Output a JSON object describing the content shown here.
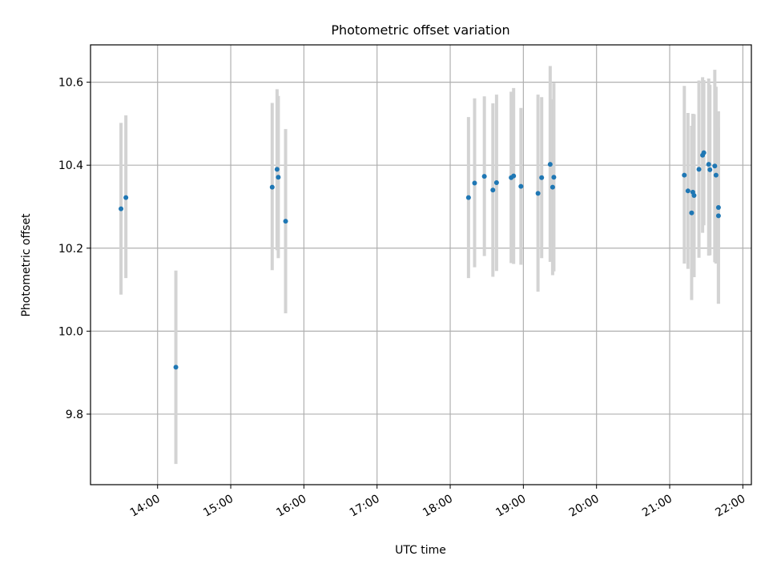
{
  "chart_data": {
    "type": "scatter",
    "title": "Photometric offset variation",
    "xlabel": "UTC time",
    "ylabel": "Photometric offset",
    "x_ticks": [
      "14:00",
      "15:00",
      "16:00",
      "17:00",
      "18:00",
      "19:00",
      "20:00",
      "21:00",
      "22:00"
    ],
    "y_ticks": [
      "9.8",
      "10.0",
      "10.2",
      "10.4",
      "10.6"
    ],
    "xlim": [
      "13:05",
      "22:07"
    ],
    "ylim": [
      9.63,
      10.69
    ],
    "grid": true,
    "colors": {
      "point": "#1f77b4",
      "errorbar": "#d3d3d3",
      "grid": "#b0b0b0"
    },
    "points": [
      {
        "t": "13:30",
        "y": 10.295,
        "lo": 10.088,
        "hi": 10.502
      },
      {
        "t": "13:34",
        "y": 10.322,
        "lo": 10.128,
        "hi": 10.52
      },
      {
        "t": "14:15",
        "y": 9.913,
        "lo": 9.68,
        "hi": 10.146
      },
      {
        "t": "15:34",
        "y": 10.347,
        "lo": 10.147,
        "hi": 10.55
      },
      {
        "t": "15:38",
        "y": 10.39,
        "lo": 10.195,
        "hi": 10.583
      },
      {
        "t": "15:39",
        "y": 10.371,
        "lo": 10.176,
        "hi": 10.567
      },
      {
        "t": "15:45",
        "y": 10.265,
        "lo": 10.043,
        "hi": 10.487
      },
      {
        "t": "18:15",
        "y": 10.322,
        "lo": 10.128,
        "hi": 10.516
      },
      {
        "t": "18:20",
        "y": 10.357,
        "lo": 10.154,
        "hi": 10.561
      },
      {
        "t": "18:28",
        "y": 10.373,
        "lo": 10.181,
        "hi": 10.566
      },
      {
        "t": "18:35",
        "y": 10.34,
        "lo": 10.131,
        "hi": 10.549
      },
      {
        "t": "18:38",
        "y": 10.358,
        "lo": 10.145,
        "hi": 10.57
      },
      {
        "t": "18:50",
        "y": 10.37,
        "lo": 10.164,
        "hi": 10.577
      },
      {
        "t": "18:52",
        "y": 10.374,
        "lo": 10.162,
        "hi": 10.586
      },
      {
        "t": "18:58",
        "y": 10.349,
        "lo": 10.16,
        "hi": 10.538
      },
      {
        "t": "19:12",
        "y": 10.332,
        "lo": 10.095,
        "hi": 10.57
      },
      {
        "t": "19:15",
        "y": 10.37,
        "lo": 10.176,
        "hi": 10.564
      },
      {
        "t": "19:22",
        "y": 10.402,
        "lo": 10.167,
        "hi": 10.639
      },
      {
        "t": "19:24",
        "y": 10.347,
        "lo": 10.135,
        "hi": 10.559
      },
      {
        "t": "19:25",
        "y": 10.371,
        "lo": 10.144,
        "hi": 10.598
      },
      {
        "t": "21:12",
        "y": 10.376,
        "lo": 10.163,
        "hi": 10.591
      },
      {
        "t": "21:15",
        "y": 10.338,
        "lo": 10.15,
        "hi": 10.526
      },
      {
        "t": "21:18",
        "y": 10.285,
        "lo": 10.075,
        "hi": 10.495
      },
      {
        "t": "21:19",
        "y": 10.335,
        "lo": 10.148,
        "hi": 10.524
      },
      {
        "t": "21:20",
        "y": 10.327,
        "lo": 10.13,
        "hi": 10.523
      },
      {
        "t": "21:24",
        "y": 10.39,
        "lo": 10.177,
        "hi": 10.604
      },
      {
        "t": "21:27",
        "y": 10.424,
        "lo": 10.237,
        "hi": 10.612
      },
      {
        "t": "21:28",
        "y": 10.43,
        "lo": 10.255,
        "hi": 10.605
      },
      {
        "t": "21:32",
        "y": 10.402,
        "lo": 10.182,
        "hi": 10.609
      },
      {
        "t": "21:33",
        "y": 10.389,
        "lo": 10.183,
        "hi": 10.594
      },
      {
        "t": "21:37",
        "y": 10.398,
        "lo": 10.166,
        "hi": 10.63
      },
      {
        "t": "21:38",
        "y": 10.376,
        "lo": 10.163,
        "hi": 10.589
      },
      {
        "t": "21:40",
        "y": 10.278,
        "lo": 10.066,
        "hi": 10.49
      },
      {
        "t": "21:40",
        "y": 10.298,
        "lo": 10.066,
        "hi": 10.53
      }
    ]
  }
}
